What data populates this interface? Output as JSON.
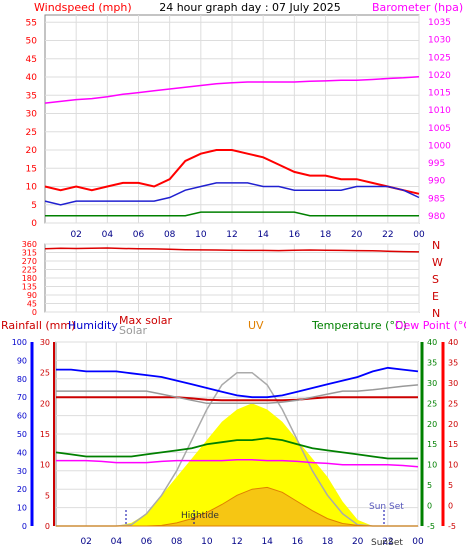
{
  "header": {
    "windspeed_label": "Windspeed (mph)",
    "title": "24 hour graph day : 07 July 2025",
    "barometer_label": "Barometer (hpa)"
  },
  "mid": {
    "rainfall_label": "Rainfall (mm)",
    "humidity_label": "Humidity",
    "maxsolar_label": "Max solar",
    "solar_label": "Solar",
    "uv_label": "UV",
    "temperature_label": "Temperature (°C)",
    "dewpoint_label": "Dew Point (°C)"
  },
  "annotations": {
    "hightide": "Hightide",
    "sunset": "Sun Set",
    "sunset_short": "SunSet"
  },
  "colors": {
    "wind": "#ff0000",
    "gust_avg": "#2020d0",
    "wind_low": "#008000",
    "baro": "#ff00ff",
    "rain": "#0000ff",
    "humidity": "#0000ff",
    "maxsolar": "#cc0000",
    "solar": "#999999",
    "uv": "#e08000",
    "temp": "#008000",
    "dew": "#ff0000",
    "solar_fill": "#ffff00",
    "grid": "#dddddd"
  },
  "chart_data": [
    {
      "type": "line",
      "x_ticks": [
        "02",
        "04",
        "06",
        "08",
        "10",
        "12",
        "14",
        "16",
        "18",
        "20",
        "22",
        "00"
      ],
      "left_axis": {
        "label": "Windspeed (mph)",
        "ticks": [
          0,
          5,
          10,
          15,
          20,
          25,
          30,
          35,
          40,
          45,
          50,
          55
        ],
        "ylim": [
          0,
          57
        ]
      },
      "right_axis": {
        "label": "Barometer (hpa)",
        "ticks": [
          980,
          985,
          990,
          995,
          1000,
          1005,
          1010,
          1015,
          1020,
          1025,
          1030,
          1035
        ],
        "ylim": [
          978,
          1037
        ]
      },
      "series": [
        {
          "key": "gust",
          "values": [
            10,
            9,
            10,
            9,
            10,
            11,
            11,
            10,
            12,
            17,
            19,
            20,
            20,
            19,
            18,
            16,
            14,
            13,
            13,
            12,
            12,
            11,
            10,
            9,
            8
          ]
        },
        {
          "key": "average",
          "values": [
            6,
            5,
            6,
            6,
            6,
            6,
            6,
            6,
            7,
            9,
            10,
            11,
            11,
            11,
            10,
            10,
            9,
            9,
            9,
            9,
            10,
            10,
            10,
            9,
            7
          ]
        },
        {
          "key": "low",
          "values": [
            2,
            2,
            2,
            2,
            2,
            2,
            2,
            2,
            2,
            2,
            3,
            3,
            3,
            3,
            3,
            3,
            3,
            2,
            2,
            2,
            2,
            2,
            2,
            2,
            2
          ]
        },
        {
          "key": "barometer",
          "values": [
            1012,
            1012.5,
            1013,
            1013.3,
            1013.8,
            1014.5,
            1015,
            1015.5,
            1016,
            1016.5,
            1017,
            1017.5,
            1017.8,
            1018,
            1018,
            1018,
            1018,
            1018.2,
            1018.3,
            1018.5,
            1018.5,
            1018.7,
            1019,
            1019.2,
            1019.5
          ]
        }
      ]
    },
    {
      "type": "line",
      "x_ticks": [],
      "y_ticks": [
        0,
        45,
        90,
        135,
        180,
        225,
        270,
        315,
        360
      ],
      "ylim": [
        0,
        360
      ],
      "compass_labels": [
        "N",
        "W",
        "S",
        "E",
        "N"
      ],
      "series": [
        {
          "key": "direction",
          "values": [
            335,
            338,
            336,
            337,
            339,
            336,
            335,
            334,
            332,
            330,
            329,
            328,
            327,
            326,
            326,
            325,
            327,
            328,
            327,
            326,
            325,
            324,
            322,
            320,
            318
          ]
        }
      ]
    },
    {
      "type": "line",
      "x_ticks": [
        "02",
        "04",
        "06",
        "08",
        "10",
        "12",
        "14",
        "16",
        "18",
        "20",
        "22",
        "00"
      ],
      "rain_axis": {
        "ticks": [
          0,
          10,
          20,
          30,
          40,
          50,
          60,
          70,
          80,
          90,
          100
        ],
        "ylim": [
          0,
          100
        ]
      },
      "solar_axis": {
        "ticks": [
          0,
          5,
          10,
          15,
          20,
          25,
          30
        ],
        "ylim": [
          0,
          30
        ]
      },
      "temp_axis": {
        "ticks": [
          -5,
          0,
          5,
          10,
          15,
          20,
          25,
          30,
          35,
          40
        ],
        "ylim": [
          -5,
          40
        ]
      },
      "series": [
        {
          "key": "humidity",
          "values": [
            85,
            85,
            84,
            84,
            84,
            83,
            82,
            81,
            79,
            77,
            75,
            73,
            71,
            70,
            70,
            71,
            73,
            75,
            77,
            79,
            81,
            84,
            86,
            85,
            84
          ]
        },
        {
          "key": "maxsolar",
          "values": [
            21,
            21,
            21,
            21,
            21,
            21,
            21,
            21,
            21,
            20.8,
            20.6,
            20.5,
            20.5,
            20.5,
            20.5,
            20.5,
            20.6,
            20.8,
            21,
            21,
            21,
            21,
            21,
            21,
            21
          ]
        },
        {
          "key": "solar_line",
          "values": [
            22,
            22,
            22,
            22,
            22,
            22,
            22,
            21.5,
            21,
            20.5,
            20,
            20,
            20,
            20,
            20,
            20.2,
            20.5,
            21,
            21.5,
            22,
            22,
            22.2,
            22.5,
            22.8,
            23
          ]
        },
        {
          "key": "temperature",
          "values": [
            13,
            12.5,
            12,
            12,
            12,
            12,
            12.5,
            13,
            13.5,
            14,
            15,
            15.5,
            16,
            16,
            16.5,
            16,
            15,
            14,
            13.5,
            13,
            12.5,
            12,
            11.5,
            11.5,
            11.5
          ]
        },
        {
          "key": "dewpoint",
          "values": [
            11,
            11,
            11,
            10.8,
            10.5,
            10.5,
            10.5,
            10.8,
            11,
            11,
            11,
            11,
            11.2,
            11.2,
            11,
            11,
            10.8,
            10.5,
            10.3,
            10,
            10,
            10,
            10,
            9.8,
            9.5
          ]
        },
        {
          "key": "solar_radiation",
          "values": [
            0,
            0,
            0,
            0,
            0,
            0.5,
            2,
            5,
            8,
            11,
            14,
            17,
            19,
            20,
            19,
            17,
            14,
            11,
            8,
            4,
            1,
            0,
            0,
            0,
            0
          ]
        },
        {
          "key": "solar_max_curve",
          "values": [
            0,
            0,
            0,
            0,
            0,
            0.2,
            2,
            5,
            9,
            14,
            19,
            23,
            25,
            25,
            23,
            19,
            14,
            9,
            5,
            2,
            0.2,
            0,
            0,
            0,
            0
          ]
        },
        {
          "key": "uv",
          "values": [
            0,
            0,
            0,
            0,
            0,
            0,
            0,
            0.1,
            0.5,
            1.2,
            2.2,
            3.5,
            5,
            6,
            6.3,
            5.5,
            4,
            2.5,
            1.2,
            0.4,
            0.1,
            0,
            0,
            0,
            0
          ]
        }
      ]
    }
  ]
}
